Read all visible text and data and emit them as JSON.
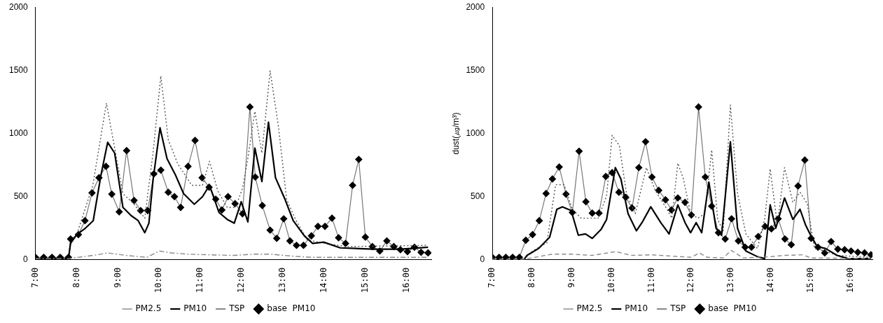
{
  "chart_data": [
    {
      "type": "line",
      "legend": "bottom",
      "grid": false,
      "xlim": [
        7,
        16.6
      ],
      "xticks": [
        {
          "value": 7,
          "label": "7:00"
        },
        {
          "value": 8,
          "label": "8:00"
        },
        {
          "value": 9,
          "label": "9:00"
        },
        {
          "value": 10,
          "label": "10:00"
        },
        {
          "value": 11,
          "label": "11:00"
        },
        {
          "value": 12,
          "label": "12:00"
        },
        {
          "value": 13,
          "label": "13:00"
        },
        {
          "value": 14,
          "label": "14:00"
        },
        {
          "value": 15,
          "label": "15:00"
        },
        {
          "value": 16,
          "label": "16:00"
        }
      ],
      "ylim": [
        0,
        2000
      ],
      "yticks": [
        0,
        500,
        1000,
        1500,
        2000
      ],
      "series": [
        {
          "name": "PM2.5",
          "color": "#888888",
          "line_style": "dashdot",
          "marker": "none",
          "x": [
            7,
            7.8,
            8.5,
            8.75,
            9.2,
            9.7,
            10,
            10.3,
            10.7,
            11.2,
            11.8,
            12.3,
            12.7,
            13.2,
            13.7,
            16.5
          ],
          "values": [
            10,
            10,
            40,
            55,
            35,
            20,
            70,
            55,
            45,
            40,
            35,
            45,
            45,
            30,
            20,
            20
          ]
        },
        {
          "name": "PM10",
          "color": "#000000",
          "line_style": "solid",
          "marker": "none",
          "x": [
            7,
            7.8,
            7.85,
            8,
            8.19,
            8.4,
            8.59,
            8.75,
            8.92,
            9.12,
            9.32,
            9.49,
            9.65,
            9.75,
            9.85,
            10.02,
            10.19,
            10.39,
            10.59,
            10.85,
            11.05,
            11.22,
            11.45,
            11.65,
            11.82,
            11.99,
            12.15,
            12.32,
            12.49,
            12.65,
            12.82,
            13.05,
            13.25,
            13.52,
            13.72,
            13.99,
            14.39,
            15.19,
            15.85,
            16.52
          ],
          "values": [
            10,
            10,
            130,
            200,
            245,
            310,
            675,
            930,
            845,
            415,
            350,
            310,
            215,
            290,
            630,
            1045,
            800,
            675,
            525,
            440,
            500,
            590,
            375,
            320,
            290,
            460,
            300,
            885,
            620,
            1090,
            650,
            480,
            310,
            190,
            130,
            140,
            95,
            85,
            85,
            100
          ]
        },
        {
          "name": "TSP",
          "color": "#555555",
          "line_style": "dotted",
          "marker": "none",
          "x": [
            7,
            7.8,
            7.85,
            8,
            8.39,
            8.72,
            8.92,
            9.12,
            9.39,
            9.65,
            9.85,
            10.04,
            10.22,
            10.45,
            10.79,
            11.05,
            11.22,
            11.42,
            11.65,
            11.85,
            12.02,
            12.15,
            12.32,
            12.49,
            12.69,
            12.89,
            13.09,
            13.32,
            13.59,
            13.85,
            14.52,
            16.52
          ],
          "values": [
            10,
            10,
            130,
            200,
            590,
            1240,
            885,
            525,
            440,
            330,
            845,
            1455,
            950,
            760,
            590,
            590,
            780,
            545,
            415,
            415,
            565,
            800,
            1175,
            845,
            1495,
            1060,
            480,
            310,
            160,
            140,
            105,
            115
          ]
        },
        {
          "name": "base  PM10",
          "color": "#777777",
          "line_style": "solid",
          "marker": "diamond",
          "x": [
            7,
            7.2,
            7.4,
            7.6,
            7.8,
            7.85,
            8.04,
            8.2,
            8.37,
            8.54,
            8.71,
            8.85,
            9.03,
            9.21,
            9.39,
            9.55,
            9.72,
            9.87,
            10.04,
            10.22,
            10.37,
            10.52,
            10.7,
            10.87,
            11.04,
            11.21,
            11.37,
            11.52,
            11.67,
            11.84,
            12.02,
            12.2,
            12.33,
            12.5,
            12.69,
            12.85,
            13.02,
            13.17,
            13.33,
            13.5,
            13.69,
            13.85,
            14.02,
            14.19,
            14.35,
            14.52,
            14.69,
            14.84,
            15,
            15.17,
            15.35,
            15.52,
            15.69,
            15.85,
            16.02,
            16.19,
            16.35,
            16.52
          ],
          "values": [
            20,
            20,
            20,
            20,
            20,
            165,
            200,
            310,
            530,
            650,
            740,
            520,
            380,
            865,
            470,
            390,
            390,
            680,
            710,
            535,
            500,
            415,
            740,
            945,
            650,
            575,
            480,
            395,
            500,
            445,
            365,
            1210,
            655,
            430,
            235,
            170,
            325,
            150,
            115,
            115,
            190,
            265,
            265,
            330,
            175,
            130,
            590,
            795,
            180,
            105,
            70,
            150,
            105,
            80,
            65,
            100,
            60,
            55
          ]
        }
      ]
    },
    {
      "type": "line",
      "legend": "bottom",
      "grid": false,
      "ylabel": "dust(㎍/m³)",
      "xlim": [
        7,
        16.55
      ],
      "xticks": [
        {
          "value": 7,
          "label": "7:00"
        },
        {
          "value": 8,
          "label": "8:00"
        },
        {
          "value": 9,
          "label": "9:00"
        },
        {
          "value": 10,
          "label": "10:00"
        },
        {
          "value": 11,
          "label": "11:00"
        },
        {
          "value": 12,
          "label": "12:00"
        },
        {
          "value": 13,
          "label": "13:00"
        },
        {
          "value": 14,
          "label": "14:00"
        },
        {
          "value": 15,
          "label": "15:00"
        },
        {
          "value": 16,
          "label": "16:00"
        }
      ],
      "ylim": [
        0,
        2000
      ],
      "yticks": [
        0,
        500,
        1000,
        1500,
        2000
      ],
      "series": [
        {
          "name": "PM2.5",
          "color": "#888888",
          "line_style": "dashed",
          "marker": "none",
          "x": [
            7,
            7.8,
            8.5,
            9,
            9.5,
            10.1,
            10.5,
            11,
            11.5,
            12,
            12.2,
            12.4,
            12.8,
            13,
            13.3,
            14,
            14.3,
            14.8,
            15,
            16.5
          ],
          "values": [
            5,
            5,
            45,
            45,
            35,
            65,
            35,
            40,
            30,
            20,
            55,
            20,
            15,
            75,
            15,
            25,
            35,
            40,
            15,
            10
          ]
        },
        {
          "name": "PM10",
          "color": "#000000",
          "line_style": "solid",
          "marker": "none",
          "x": [
            7,
            7.8,
            7.87,
            8.16,
            8.44,
            8.62,
            8.76,
            8.98,
            9.16,
            9.34,
            9.51,
            9.73,
            9.87,
            10.09,
            10.23,
            10.41,
            10.62,
            10.76,
            10.98,
            11.23,
            11.44,
            11.66,
            11.84,
            11.98,
            12.12,
            12.26,
            12.44,
            12.62,
            12.76,
            12.98,
            13.16,
            13.37,
            13.66,
            13.84,
            13.98,
            14.12,
            14.34,
            14.55,
            14.73,
            14.87,
            14.98,
            15.16,
            15.37,
            15.66,
            15.94,
            16.51
          ],
          "values": [
            5,
            5,
            35,
            90,
            180,
            400,
            420,
            390,
            195,
            205,
            170,
            240,
            320,
            730,
            640,
            365,
            230,
            295,
            420,
            295,
            205,
            435,
            295,
            215,
            295,
            215,
            615,
            250,
            195,
            935,
            250,
            70,
            25,
            10,
            435,
            250,
            490,
            320,
            400,
            275,
            205,
            105,
            90,
            35,
            10,
            10
          ]
        },
        {
          "name": "TSP",
          "color": "#555555",
          "line_style": "dotted",
          "marker": "none",
          "x": [
            7,
            7.8,
            8.01,
            8.37,
            8.59,
            8.8,
            9.01,
            9.23,
            9.66,
            9.87,
            10.01,
            10.19,
            10.37,
            10.59,
            10.87,
            11.09,
            11.37,
            11.51,
            11.66,
            11.8,
            11.98,
            12.16,
            12.34,
            12.51,
            12.66,
            12.8,
            12.98,
            13.16,
            13.37,
            13.66,
            13.84,
            13.98,
            14.16,
            14.34,
            14.55,
            14.73,
            14.91,
            15.09,
            15.37,
            15.66,
            16.51
          ],
          "values": [
            5,
            5,
            70,
            135,
            595,
            595,
            400,
            330,
            330,
            505,
            985,
            905,
            525,
            365,
            730,
            550,
            410,
            330,
            765,
            640,
            365,
            330,
            365,
            870,
            320,
            230,
            1225,
            525,
            205,
            90,
            320,
            720,
            275,
            730,
            455,
            535,
            445,
            90,
            70,
            35,
            20
          ]
        },
        {
          "name": "base  PM10",
          "color": "#777777",
          "line_style": "solid",
          "marker": "diamond",
          "x": [
            7,
            7.17,
            7.34,
            7.51,
            7.68,
            7.84,
            8.01,
            8.18,
            8.35,
            8.51,
            8.68,
            8.85,
            9.01,
            9.18,
            9.35,
            9.51,
            9.68,
            9.85,
            10.01,
            10.18,
            10.35,
            10.51,
            10.68,
            10.85,
            11.01,
            11.18,
            11.35,
            11.5,
            11.66,
            11.84,
            12,
            12.18,
            12.35,
            12.51,
            12.68,
            12.85,
            13.01,
            13.18,
            13.35,
            13.51,
            13.68,
            13.85,
            14.01,
            14.18,
            14.35,
            14.51,
            14.68,
            14.85,
            15.01,
            15.18,
            15.35,
            15.51,
            15.68,
            15.85,
            16.01,
            16.18,
            16.35,
            16.51
          ],
          "values": [
            20,
            20,
            20,
            20,
            20,
            155,
            200,
            310,
            525,
            640,
            735,
            520,
            375,
            860,
            460,
            370,
            370,
            660,
            690,
            535,
            495,
            410,
            730,
            935,
            655,
            550,
            475,
            395,
            490,
            455,
            355,
            1210,
            655,
            425,
            215,
            165,
            325,
            150,
            100,
            100,
            185,
            265,
            245,
            325,
            165,
            120,
            585,
            790,
            170,
            100,
            55,
            145,
            85,
            80,
            70,
            60,
            55,
            40
          ]
        }
      ]
    }
  ]
}
